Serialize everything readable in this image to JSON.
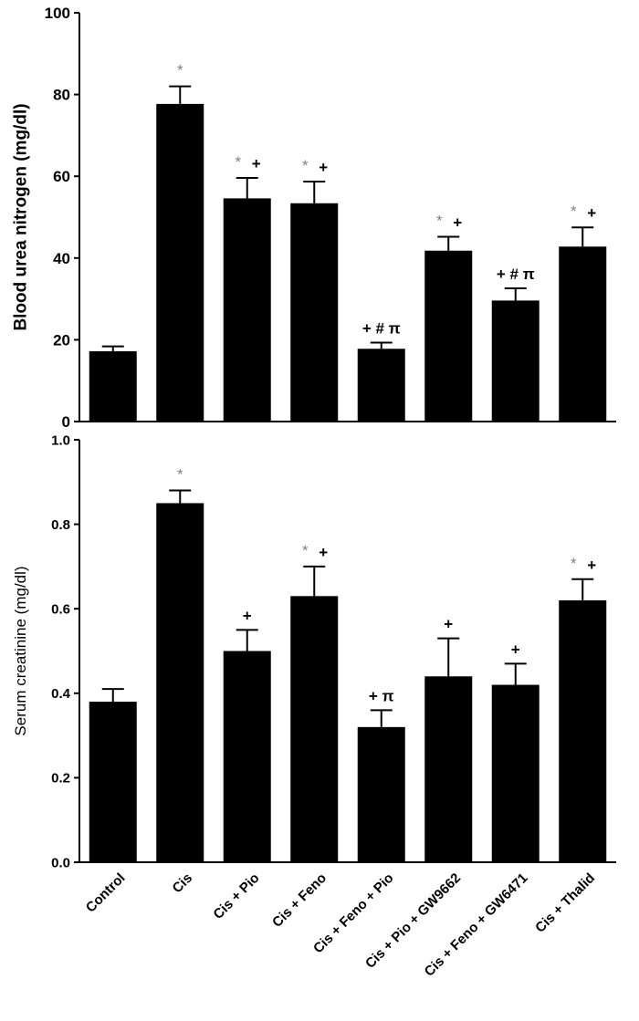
{
  "chart_data": [
    {
      "type": "bar",
      "title": "",
      "xlabel": "",
      "ylabel": "Blood urea nitrogen (mg/dl)",
      "ylim": [
        0,
        100
      ],
      "yticks": [
        "0",
        "20",
        "40",
        "60",
        "80",
        "100"
      ],
      "categories": [
        "Control",
        "Cis",
        "Cis + Pio",
        "Cis + Feno",
        "Cis + Feno + Pio",
        "Cis + Pio + GW9662",
        "Cis + Feno + GW6471",
        "Cis + Thalid"
      ],
      "values": [
        17.2,
        77.7,
        54.6,
        53.4,
        17.8,
        41.8,
        29.6,
        42.8
      ],
      "errors": [
        1.2,
        4.3,
        5.0,
        5.3,
        1.5,
        3.4,
        3.0,
        4.7
      ],
      "annotations": [
        [],
        [
          {
            "text": "*",
            "color": "#808080"
          }
        ],
        [
          {
            "text": "*",
            "color": "#808080"
          },
          {
            "text": "+",
            "color": "#000000"
          }
        ],
        [
          {
            "text": "*",
            "color": "#808080"
          },
          {
            "text": "+",
            "color": "#000000"
          }
        ],
        [
          {
            "text": "+ # π",
            "color": "#000000"
          }
        ],
        [
          {
            "text": "*",
            "color": "#808080"
          },
          {
            "text": "+",
            "color": "#000000"
          }
        ],
        [
          {
            "text": "+ # π",
            "color": "#000000"
          }
        ],
        [
          {
            "text": "*",
            "color": "#808080"
          },
          {
            "text": "+",
            "color": "#000000"
          }
        ]
      ]
    },
    {
      "type": "bar",
      "title": "",
      "xlabel": "",
      "ylabel": "Serum creatinine (mg/dl)",
      "ylim": [
        0,
        1.0
      ],
      "yticks": [
        "0.0",
        "0.2",
        "0.4",
        "0.6",
        "0.8",
        "1.0"
      ],
      "categories": [
        "Control",
        "Cis",
        "Cis + Pio",
        "Cis + Feno",
        "Cis + Feno + Pio",
        "Cis + Pio + GW9662",
        "Cis + Feno + GW6471",
        "Cis + Thalid"
      ],
      "values": [
        0.38,
        0.85,
        0.5,
        0.63,
        0.32,
        0.44,
        0.42,
        0.62
      ],
      "errors": [
        0.03,
        0.03,
        0.05,
        0.07,
        0.04,
        0.09,
        0.05,
        0.05
      ],
      "annotations": [
        [],
        [
          {
            "text": "*",
            "color": "#808080"
          }
        ],
        [
          {
            "text": "+",
            "color": "#000000"
          }
        ],
        [
          {
            "text": "*",
            "color": "#808080"
          },
          {
            "text": "+",
            "color": "#000000"
          }
        ],
        [
          {
            "text": "+ π",
            "color": "#000000"
          }
        ],
        [
          {
            "text": "+",
            "color": "#000000"
          }
        ],
        [
          {
            "text": "+",
            "color": "#000000"
          }
        ],
        [
          {
            "text": "*",
            "color": "#808080"
          },
          {
            "text": "+",
            "color": "#000000"
          }
        ]
      ]
    }
  ],
  "colors": {
    "bar": "#000000",
    "significance_star": "#808080",
    "axis": "#000000"
  }
}
